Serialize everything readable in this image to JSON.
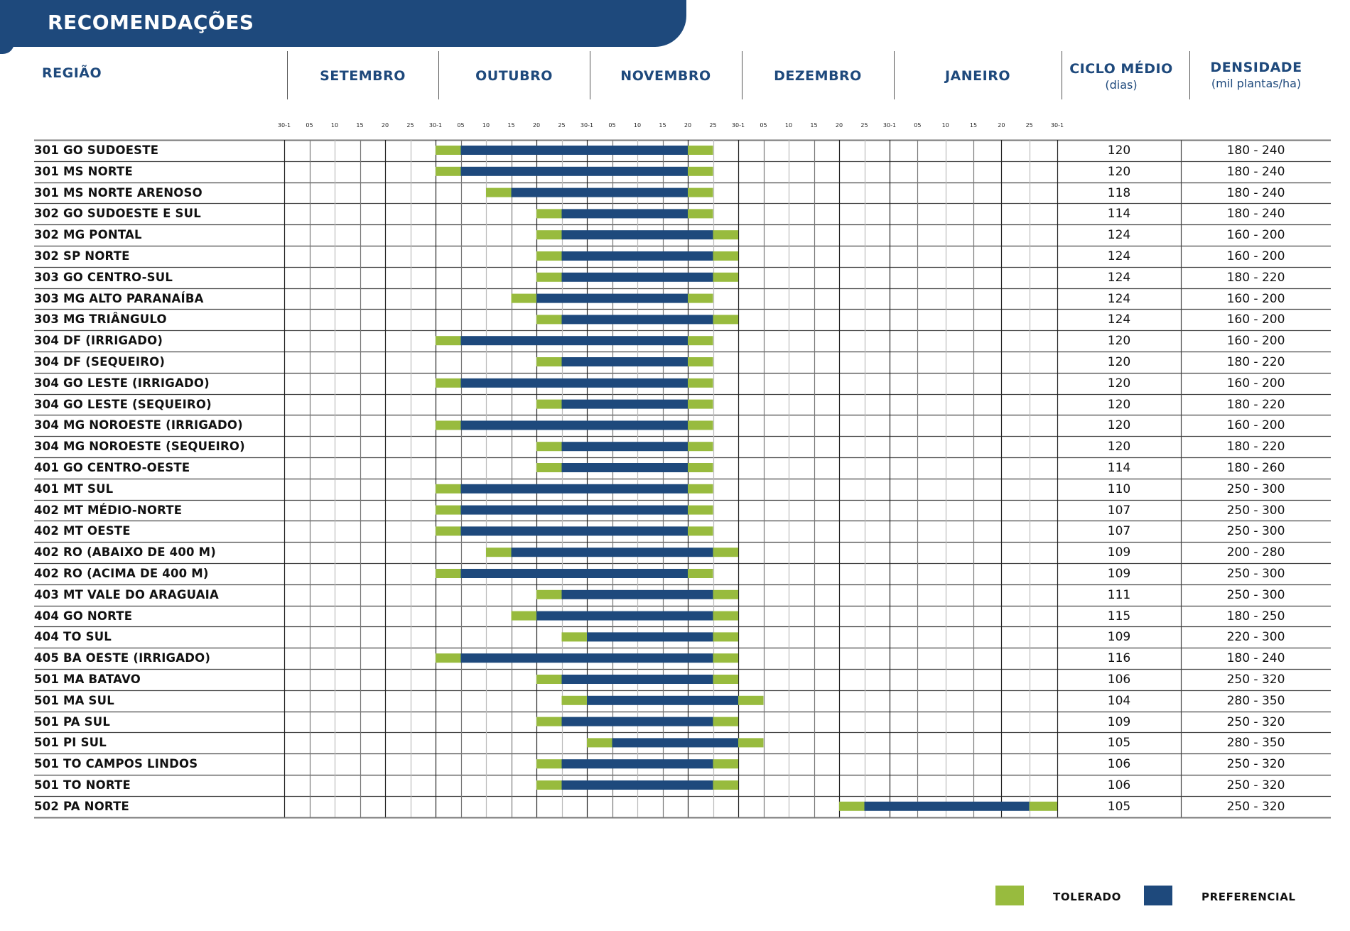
{
  "header": {
    "title": "RECOMENDAÇÕES",
    "region_label": "REGIÃO",
    "cycle_label": "CICLO MÉDIO",
    "cycle_unit": "(dias)",
    "density_label": "DENSIDADE",
    "density_unit": "(mil plantas/ha)"
  },
  "colors": {
    "brand": "#1e497c",
    "tolerado": "#98bb3e",
    "preferencial": "#1e497c"
  },
  "legend": {
    "tolerado": "TOLERADO",
    "preferencial": "PREFERENCIAL"
  },
  "chart_data": {
    "type": "table",
    "subtype": "gantt",
    "months": [
      "SETEMBRO",
      "OUTUBRO",
      "NOVEMBRO",
      "DEZEMBRO",
      "JANEIRO"
    ],
    "ticks": [
      "30-1",
      "05",
      "10",
      "15",
      "20",
      "25",
      "30-1",
      "05",
      "10",
      "15",
      "20",
      "25",
      "30-1",
      "05",
      "10",
      "15",
      "20",
      "25",
      "30-1",
      "05",
      "10",
      "15",
      "20",
      "25",
      "30-1",
      "05",
      "10",
      "15",
      "20",
      "25",
      "30-1"
    ],
    "interval_units": "tick index (0 = SETEMBRO 30-1, 30 = final 30-1)",
    "legend": [
      "TOLERADO",
      "PREFERENCIAL"
    ],
    "columns": [
      "REGIÃO",
      "CICLO MÉDIO (dias)",
      "DENSIDADE (mil plantas/ha)"
    ],
    "rows": [
      {
        "region": "301 GO SUDOESTE",
        "tol_start": 6,
        "pref_start": 7,
        "pref_end": 16,
        "tol_end": 17,
        "cycle": "120",
        "density": "180 - 240"
      },
      {
        "region": "301 MS NORTE",
        "tol_start": 6,
        "pref_start": 7,
        "pref_end": 16,
        "tol_end": 17,
        "cycle": "120",
        "density": "180 - 240"
      },
      {
        "region": "301 MS NORTE ARENOSO",
        "tol_start": 8,
        "pref_start": 9,
        "pref_end": 16,
        "tol_end": 17,
        "cycle": "118",
        "density": "180 - 240"
      },
      {
        "region": "302 GO SUDOESTE E SUL",
        "tol_start": 10,
        "pref_start": 11,
        "pref_end": 16,
        "tol_end": 17,
        "cycle": "114",
        "density": "180 - 240"
      },
      {
        "region": "302 MG PONTAL",
        "tol_start": 10,
        "pref_start": 11,
        "pref_end": 17,
        "tol_end": 18,
        "cycle": "124",
        "density": "160 - 200"
      },
      {
        "region": "302 SP NORTE",
        "tol_start": 10,
        "pref_start": 11,
        "pref_end": 17,
        "tol_end": 18,
        "cycle": "124",
        "density": "160 - 200"
      },
      {
        "region": "303 GO CENTRO-SUL",
        "tol_start": 10,
        "pref_start": 11,
        "pref_end": 17,
        "tol_end": 18,
        "cycle": "124",
        "density": "180 - 220"
      },
      {
        "region": "303 MG ALTO PARANAÍBA",
        "tol_start": 9,
        "pref_start": 10,
        "pref_end": 16,
        "tol_end": 17,
        "cycle": "124",
        "density": "160 - 200"
      },
      {
        "region": "303 MG TRIÂNGULO",
        "tol_start": 10,
        "pref_start": 11,
        "pref_end": 17,
        "tol_end": 18,
        "cycle": "124",
        "density": "160 - 200"
      },
      {
        "region": "304 DF (IRRIGADO)",
        "tol_start": 6,
        "pref_start": 7,
        "pref_end": 16,
        "tol_end": 17,
        "cycle": "120",
        "density": "160 - 200"
      },
      {
        "region": "304 DF (SEQUEIRO)",
        "tol_start": 10,
        "pref_start": 11,
        "pref_end": 16,
        "tol_end": 17,
        "cycle": "120",
        "density": "180 - 220"
      },
      {
        "region": "304 GO LESTE (IRRIGADO)",
        "tol_start": 6,
        "pref_start": 7,
        "pref_end": 16,
        "tol_end": 17,
        "cycle": "120",
        "density": "160 - 200"
      },
      {
        "region": "304 GO LESTE (SEQUEIRO)",
        "tol_start": 10,
        "pref_start": 11,
        "pref_end": 16,
        "tol_end": 17,
        "cycle": "120",
        "density": "180 - 220"
      },
      {
        "region": "304 MG NOROESTE (IRRIGADO)",
        "tol_start": 6,
        "pref_start": 7,
        "pref_end": 16,
        "tol_end": 17,
        "cycle": "120",
        "density": "160 - 200"
      },
      {
        "region": "304 MG NOROESTE (SEQUEIRO)",
        "tol_start": 10,
        "pref_start": 11,
        "pref_end": 16,
        "tol_end": 17,
        "cycle": "120",
        "density": "180 - 220"
      },
      {
        "region": "401 GO CENTRO-OESTE",
        "tol_start": 10,
        "pref_start": 11,
        "pref_end": 16,
        "tol_end": 17,
        "cycle": "114",
        "density": "180 - 260"
      },
      {
        "region": "401 MT SUL",
        "tol_start": 6,
        "pref_start": 7,
        "pref_end": 16,
        "tol_end": 17,
        "cycle": "110",
        "density": "250 - 300"
      },
      {
        "region": "402 MT MÉDIO-NORTE",
        "tol_start": 6,
        "pref_start": 7,
        "pref_end": 16,
        "tol_end": 17,
        "cycle": "107",
        "density": "250 - 300"
      },
      {
        "region": "402 MT OESTE",
        "tol_start": 6,
        "pref_start": 7,
        "pref_end": 16,
        "tol_end": 17,
        "cycle": "107",
        "density": "250 - 300"
      },
      {
        "region": "402 RO (ABAIXO DE 400 M)",
        "tol_start": 8,
        "pref_start": 9,
        "pref_end": 17,
        "tol_end": 18,
        "cycle": "109",
        "density": "200 - 280"
      },
      {
        "region": "402 RO (ACIMA DE 400 M)",
        "tol_start": 6,
        "pref_start": 7,
        "pref_end": 16,
        "tol_end": 17,
        "cycle": "109",
        "density": "250 - 300"
      },
      {
        "region": "403 MT VALE DO ARAGUAIA",
        "tol_start": 10,
        "pref_start": 11,
        "pref_end": 17,
        "tol_end": 18,
        "cycle": "111",
        "density": "250 - 300"
      },
      {
        "region": "404 GO NORTE",
        "tol_start": 9,
        "pref_start": 10,
        "pref_end": 17,
        "tol_end": 18,
        "cycle": "115",
        "density": "180 - 250"
      },
      {
        "region": "404 TO SUL",
        "tol_start": 11,
        "pref_start": 12,
        "pref_end": 17,
        "tol_end": 18,
        "cycle": "109",
        "density": "220 - 300"
      },
      {
        "region": "405 BA OESTE (IRRIGADO)",
        "tol_start": 6,
        "pref_start": 7,
        "pref_end": 17,
        "tol_end": 18,
        "cycle": "116",
        "density": "180 - 240"
      },
      {
        "region": "501 MA BATAVO",
        "tol_start": 10,
        "pref_start": 11,
        "pref_end": 17,
        "tol_end": 18,
        "cycle": "106",
        "density": "250 - 320"
      },
      {
        "region": "501 MA SUL",
        "tol_start": 11,
        "pref_start": 12,
        "pref_end": 18,
        "tol_end": 19,
        "cycle": "104",
        "density": "280 - 350"
      },
      {
        "region": "501 PA SUL",
        "tol_start": 10,
        "pref_start": 11,
        "pref_end": 17,
        "tol_end": 18,
        "cycle": "109",
        "density": "250 - 320"
      },
      {
        "region": "501 PI SUL",
        "tol_start": 12,
        "pref_start": 13,
        "pref_end": 18,
        "tol_end": 19,
        "cycle": "105",
        "density": "280 - 350"
      },
      {
        "region": "501 TO CAMPOS LINDOS",
        "tol_start": 10,
        "pref_start": 11,
        "pref_end": 17,
        "tol_end": 18,
        "cycle": "106",
        "density": "250 - 320"
      },
      {
        "region": "501 TO NORTE",
        "tol_start": 10,
        "pref_start": 11,
        "pref_end": 17,
        "tol_end": 18,
        "cycle": "106",
        "density": "250 - 320"
      },
      {
        "region": "502 PA NORTE",
        "tol_start": 22,
        "pref_start": 23,
        "pref_end": 29,
        "tol_end": 30,
        "cycle": "105",
        "density": "250 - 320"
      }
    ]
  }
}
